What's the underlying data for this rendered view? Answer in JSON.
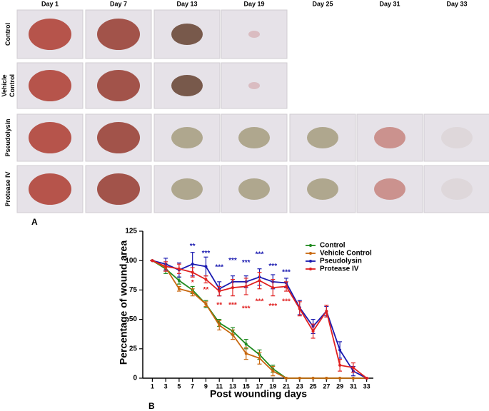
{
  "figure": {
    "panel_a": {
      "label": "A",
      "days": [
        "Day 1",
        "Day 7",
        "Day 13",
        "Day 19",
        "Day 25",
        "Day 31",
        "Day 33"
      ],
      "rows": [
        [
          "Control"
        ],
        [
          "Vehicle",
          "Control"
        ],
        [
          "Pseudolysin"
        ],
        [
          "Protease IV"
        ]
      ]
    },
    "panel_b_label": "B"
  },
  "chart_data": {
    "type": "line",
    "xlabel": "Post wounding days",
    "ylabel": "Percentage of wound area",
    "x": [
      1,
      3,
      5,
      7,
      9,
      11,
      13,
      15,
      17,
      19,
      21,
      23,
      25,
      27,
      29,
      31,
      33
    ],
    "xlim": [
      0,
      34
    ],
    "xticks": [
      1,
      3,
      5,
      7,
      9,
      11,
      13,
      15,
      17,
      19,
      21,
      23,
      25,
      27,
      29,
      31,
      33
    ],
    "ylim": [
      0,
      125
    ],
    "yticks": [
      0,
      25,
      50,
      75,
      100,
      125
    ],
    "legend": "top-right",
    "series": [
      {
        "name": "Control",
        "color": "#1f8a1f",
        "values": [
          100,
          93,
          83,
          75,
          63,
          47,
          40,
          29,
          20,
          8,
          0,
          0,
          0,
          0,
          0,
          0,
          0
        ],
        "errors": [
          0,
          4,
          3,
          3,
          3,
          3,
          3,
          4,
          4,
          3,
          0,
          0,
          0,
          0,
          0,
          0,
          0
        ]
      },
      {
        "name": "Vehicle Control",
        "color": "#c8680f",
        "values": [
          100,
          94,
          76,
          73,
          63,
          45,
          37,
          21,
          17,
          6,
          0,
          0,
          0,
          0,
          0,
          0,
          0
        ],
        "errors": [
          0,
          3,
          2,
          3,
          2,
          4,
          4,
          5,
          5,
          4,
          0,
          0,
          0,
          0,
          0,
          0,
          0
        ]
      },
      {
        "name": "Pseudolysin",
        "color": "#1a1ab0",
        "values": [
          100,
          97,
          92,
          97,
          95,
          76,
          82,
          82,
          86,
          82,
          81,
          60,
          44,
          57,
          24,
          6,
          0
        ],
        "errors": [
          0,
          5,
          6,
          10,
          8,
          6,
          5,
          5,
          7,
          6,
          4,
          6,
          6,
          4,
          7,
          4,
          0
        ]
      },
      {
        "name": "Protease IV",
        "color": "#e02020",
        "values": [
          100,
          95,
          93,
          90,
          84,
          74,
          77,
          78,
          83,
          77,
          78,
          59,
          40,
          57,
          11,
          9,
          0
        ],
        "errors": [
          0,
          4,
          4,
          4,
          3,
          4,
          7,
          7,
          7,
          7,
          4,
          6,
          6,
          5,
          5,
          4,
          0
        ]
      }
    ],
    "annotations": [
      {
        "text": "**",
        "x": 7,
        "y": 112,
        "color": "#1a1ab0"
      },
      {
        "text": "***",
        "x": 9,
        "y": 106,
        "color": "#1a1ab0"
      },
      {
        "text": "***",
        "x": 11,
        "y": 94,
        "color": "#1a1ab0"
      },
      {
        "text": "***",
        "x": 13,
        "y": 100,
        "color": "#1a1ab0"
      },
      {
        "text": "***",
        "x": 15,
        "y": 98,
        "color": "#1a1ab0"
      },
      {
        "text": "***",
        "x": 17,
        "y": 105,
        "color": "#1a1ab0"
      },
      {
        "text": "***",
        "x": 19,
        "y": 95,
        "color": "#1a1ab0"
      },
      {
        "text": "***",
        "x": 21,
        "y": 90,
        "color": "#1a1ab0"
      },
      {
        "text": "*",
        "x": 7,
        "y": 81,
        "color": "#e02020"
      },
      {
        "text": "**",
        "x": 9,
        "y": 75,
        "color": "#e02020"
      },
      {
        "text": "**",
        "x": 11,
        "y": 62,
        "color": "#e02020"
      },
      {
        "text": "***",
        "x": 13,
        "y": 62,
        "color": "#e02020"
      },
      {
        "text": "***",
        "x": 15,
        "y": 59,
        "color": "#e02020"
      },
      {
        "text": "***",
        "x": 17,
        "y": 65,
        "color": "#e02020"
      },
      {
        "text": "***",
        "x": 19,
        "y": 61,
        "color": "#e02020"
      },
      {
        "text": "***",
        "x": 21,
        "y": 65,
        "color": "#e02020"
      }
    ]
  }
}
